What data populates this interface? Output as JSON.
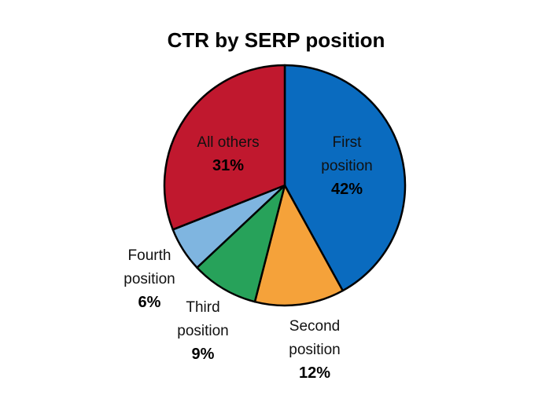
{
  "chart_data": {
    "type": "pie",
    "title": "CTR by SERP position",
    "slices": [
      {
        "name_lines": [
          "First",
          "position"
        ],
        "value": 42,
        "value_label": "42%",
        "color": "#0a6bbf"
      },
      {
        "name_lines": [
          "Second",
          "position"
        ],
        "value": 12,
        "value_label": "12%",
        "color": "#f5a23a"
      },
      {
        "name_lines": [
          "Third",
          "position"
        ],
        "value": 9,
        "value_label": "9%",
        "color": "#27a25a"
      },
      {
        "name_lines": [
          "Fourth",
          "position"
        ],
        "value": 6,
        "value_label": "6%",
        "color": "#7fb5e0"
      },
      {
        "name_lines": [
          "All others"
        ],
        "value": 31,
        "value_label": "31%",
        "color": "#c0182e"
      }
    ],
    "start": "top",
    "direction": "clockwise",
    "legend": "none"
  }
}
